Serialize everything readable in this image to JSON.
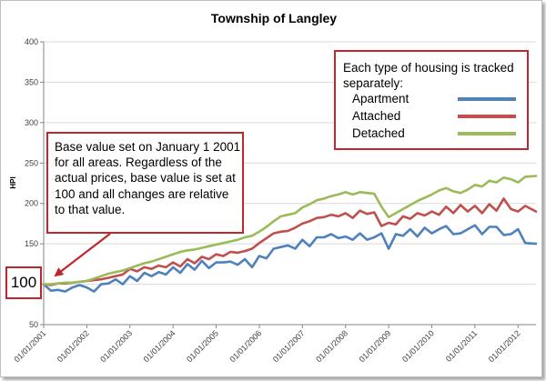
{
  "chart_data": {
    "type": "line",
    "title": "Township of Langley",
    "ylabel": "HPI",
    "xlabel": "",
    "ylim": [
      50,
      400
    ],
    "yticks": [
      50,
      100,
      150,
      200,
      250,
      300,
      350,
      400
    ],
    "xtick_labels": [
      "01/01/2001",
      "01/01/2002",
      "01/01/2003",
      "01/01/2004",
      "01/01/2005",
      "01/01/2006",
      "01/01/2007",
      "01/01/2008",
      "01/01/2009",
      "01/01/2010",
      "01/01/2011",
      "01/01/2012"
    ],
    "x_start": "2001-01",
    "x_end": "2012-06",
    "grid": "horizontal",
    "series": [
      {
        "name": "Apartment",
        "color": "#4f81bd",
        "points": [
          [
            "2001-01",
            100
          ],
          [
            "2001-03",
            92
          ],
          [
            "2001-05",
            93
          ],
          [
            "2001-07",
            91
          ],
          [
            "2001-09",
            96
          ],
          [
            "2001-11",
            99
          ],
          [
            "2002-01",
            96
          ],
          [
            "2002-03",
            91
          ],
          [
            "2002-05",
            100
          ],
          [
            "2002-07",
            101
          ],
          [
            "2002-09",
            106
          ],
          [
            "2002-11",
            100
          ],
          [
            "2003-01",
            110
          ],
          [
            "2003-03",
            104
          ],
          [
            "2003-05",
            114
          ],
          [
            "2003-07",
            110
          ],
          [
            "2003-09",
            115
          ],
          [
            "2003-11",
            112
          ],
          [
            "2004-01",
            121
          ],
          [
            "2004-03",
            114
          ],
          [
            "2004-05",
            125
          ],
          [
            "2004-07",
            118
          ],
          [
            "2004-09",
            129
          ],
          [
            "2004-11",
            120
          ],
          [
            "2005-01",
            127
          ],
          [
            "2005-03",
            127
          ],
          [
            "2005-05",
            128
          ],
          [
            "2005-07",
            124
          ],
          [
            "2005-09",
            131
          ],
          [
            "2005-11",
            121
          ],
          [
            "2006-01",
            135
          ],
          [
            "2006-03",
            132
          ],
          [
            "2006-05",
            144
          ],
          [
            "2006-07",
            146
          ],
          [
            "2006-09",
            148
          ],
          [
            "2006-11",
            144
          ],
          [
            "2007-01",
            155
          ],
          [
            "2007-03",
            147
          ],
          [
            "2007-05",
            158
          ],
          [
            "2007-07",
            158
          ],
          [
            "2007-09",
            162
          ],
          [
            "2007-11",
            157
          ],
          [
            "2008-01",
            159
          ],
          [
            "2008-03",
            155
          ],
          [
            "2008-05",
            163
          ],
          [
            "2008-07",
            155
          ],
          [
            "2008-09",
            158
          ],
          [
            "2008-11",
            163
          ],
          [
            "2009-01",
            144
          ],
          [
            "2009-03",
            162
          ],
          [
            "2009-05",
            160
          ],
          [
            "2009-07",
            168
          ],
          [
            "2009-09",
            159
          ],
          [
            "2009-11",
            170
          ],
          [
            "2010-01",
            163
          ],
          [
            "2010-03",
            168
          ],
          [
            "2010-05",
            172
          ],
          [
            "2010-07",
            162
          ],
          [
            "2010-09",
            163
          ],
          [
            "2010-11",
            168
          ],
          [
            "2011-01",
            173
          ],
          [
            "2011-03",
            162
          ],
          [
            "2011-05",
            171
          ],
          [
            "2011-07",
            171
          ],
          [
            "2011-09",
            161
          ],
          [
            "2011-11",
            162
          ],
          [
            "2012-01",
            168
          ],
          [
            "2012-03",
            151
          ],
          [
            "2012-06",
            150
          ]
        ]
      },
      {
        "name": "Attached",
        "color": "#c0504d",
        "points": [
          [
            "2001-01",
            100
          ],
          [
            "2001-03",
            99
          ],
          [
            "2001-05",
            101
          ],
          [
            "2001-07",
            101
          ],
          [
            "2001-09",
            102
          ],
          [
            "2001-11",
            103
          ],
          [
            "2002-01",
            104
          ],
          [
            "2002-03",
            105
          ],
          [
            "2002-05",
            106
          ],
          [
            "2002-07",
            108
          ],
          [
            "2002-09",
            110
          ],
          [
            "2002-11",
            112
          ],
          [
            "2003-01",
            119
          ],
          [
            "2003-03",
            116
          ],
          [
            "2003-05",
            121
          ],
          [
            "2003-07",
            119
          ],
          [
            "2003-09",
            123
          ],
          [
            "2003-11",
            121
          ],
          [
            "2004-01",
            127
          ],
          [
            "2004-03",
            122
          ],
          [
            "2004-05",
            131
          ],
          [
            "2004-07",
            126
          ],
          [
            "2004-09",
            134
          ],
          [
            "2004-11",
            131
          ],
          [
            "2005-01",
            137
          ],
          [
            "2005-03",
            135
          ],
          [
            "2005-05",
            140
          ],
          [
            "2005-07",
            139
          ],
          [
            "2005-09",
            141
          ],
          [
            "2005-11",
            144
          ],
          [
            "2006-01",
            151
          ],
          [
            "2006-03",
            157
          ],
          [
            "2006-05",
            163
          ],
          [
            "2006-07",
            165
          ],
          [
            "2006-09",
            166
          ],
          [
            "2006-11",
            170
          ],
          [
            "2007-01",
            175
          ],
          [
            "2007-03",
            178
          ],
          [
            "2007-05",
            182
          ],
          [
            "2007-07",
            183
          ],
          [
            "2007-09",
            186
          ],
          [
            "2007-11",
            184
          ],
          [
            "2008-01",
            188
          ],
          [
            "2008-03",
            182
          ],
          [
            "2008-05",
            191
          ],
          [
            "2008-07",
            187
          ],
          [
            "2008-09",
            189
          ],
          [
            "2008-11",
            172
          ],
          [
            "2009-01",
            176
          ],
          [
            "2009-03",
            174
          ],
          [
            "2009-05",
            184
          ],
          [
            "2009-07",
            181
          ],
          [
            "2009-09",
            188
          ],
          [
            "2009-11",
            185
          ],
          [
            "2010-01",
            190
          ],
          [
            "2010-03",
            186
          ],
          [
            "2010-05",
            196
          ],
          [
            "2010-07",
            188
          ],
          [
            "2010-09",
            198
          ],
          [
            "2010-11",
            190
          ],
          [
            "2011-01",
            197
          ],
          [
            "2011-03",
            188
          ],
          [
            "2011-05",
            199
          ],
          [
            "2011-07",
            191
          ],
          [
            "2011-09",
            206
          ],
          [
            "2011-11",
            193
          ],
          [
            "2012-01",
            190
          ],
          [
            "2012-03",
            197
          ],
          [
            "2012-06",
            190
          ]
        ]
      },
      {
        "name": "Detached",
        "color": "#9bbb59",
        "points": [
          [
            "2001-01",
            100
          ],
          [
            "2001-03",
            100
          ],
          [
            "2001-05",
            101
          ],
          [
            "2001-07",
            102
          ],
          [
            "2001-09",
            102
          ],
          [
            "2001-11",
            103
          ],
          [
            "2002-01",
            104
          ],
          [
            "2002-03",
            107
          ],
          [
            "2002-05",
            110
          ],
          [
            "2002-07",
            113
          ],
          [
            "2002-09",
            115
          ],
          [
            "2002-11",
            117
          ],
          [
            "2003-01",
            120
          ],
          [
            "2003-03",
            123
          ],
          [
            "2003-05",
            126
          ],
          [
            "2003-07",
            128
          ],
          [
            "2003-09",
            131
          ],
          [
            "2003-11",
            134
          ],
          [
            "2004-01",
            137
          ],
          [
            "2004-03",
            140
          ],
          [
            "2004-05",
            142
          ],
          [
            "2004-07",
            143
          ],
          [
            "2004-09",
            145
          ],
          [
            "2004-11",
            147
          ],
          [
            "2005-01",
            149
          ],
          [
            "2005-03",
            151
          ],
          [
            "2005-05",
            153
          ],
          [
            "2005-07",
            155
          ],
          [
            "2005-09",
            158
          ],
          [
            "2005-11",
            160
          ],
          [
            "2006-01",
            165
          ],
          [
            "2006-03",
            171
          ],
          [
            "2006-05",
            178
          ],
          [
            "2006-07",
            184
          ],
          [
            "2006-09",
            186
          ],
          [
            "2006-11",
            188
          ],
          [
            "2007-01",
            195
          ],
          [
            "2007-03",
            199
          ],
          [
            "2007-05",
            204
          ],
          [
            "2007-07",
            206
          ],
          [
            "2007-09",
            209
          ],
          [
            "2007-11",
            211
          ],
          [
            "2008-01",
            214
          ],
          [
            "2008-03",
            211
          ],
          [
            "2008-05",
            214
          ],
          [
            "2008-07",
            213
          ],
          [
            "2008-09",
            212
          ],
          [
            "2008-11",
            196
          ],
          [
            "2009-01",
            183
          ],
          [
            "2009-03",
            188
          ],
          [
            "2009-05",
            193
          ],
          [
            "2009-07",
            198
          ],
          [
            "2009-09",
            203
          ],
          [
            "2009-11",
            207
          ],
          [
            "2010-01",
            211
          ],
          [
            "2010-03",
            216
          ],
          [
            "2010-05",
            219
          ],
          [
            "2010-07",
            215
          ],
          [
            "2010-09",
            213
          ],
          [
            "2010-11",
            217
          ],
          [
            "2011-01",
            223
          ],
          [
            "2011-03",
            221
          ],
          [
            "2011-05",
            228
          ],
          [
            "2011-07",
            226
          ],
          [
            "2011-09",
            232
          ],
          [
            "2011-11",
            230
          ],
          [
            "2012-01",
            226
          ],
          [
            "2012-03",
            233
          ],
          [
            "2012-06",
            234
          ]
        ]
      }
    ]
  },
  "legend": {
    "intro": "Each type of housing is tracked separately:",
    "items": [
      {
        "label": "Apartment",
        "color": "#4f81bd"
      },
      {
        "label": "Attached",
        "color": "#c0504d"
      },
      {
        "label": "Detached",
        "color": "#9bbb59"
      }
    ]
  },
  "annotation": {
    "text": "Base value set on January 1 2001 for all areas. Regardless of the actual prices, base value is set at 100 and all changes are relative to that value.",
    "base_value_label": "100",
    "border_color": "#c0272d"
  }
}
